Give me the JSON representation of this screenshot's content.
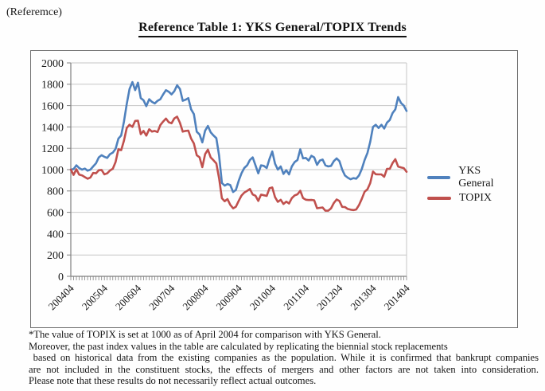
{
  "page": {
    "reference_label": "(Referemce)",
    "title": "Reference Table 1: YKS General/TOPIX Trends"
  },
  "chart_data": {
    "type": "line",
    "title": "Reference Table 1: YKS General/TOPIX Trends",
    "x_start": "200404",
    "x_end": "201404",
    "x_interval": "monthly",
    "x_tick_labels": [
      "200404",
      "200504",
      "200604",
      "200704",
      "200804",
      "200904",
      "201004",
      "201104",
      "201204",
      "201304",
      "201404"
    ],
    "ylim": [
      0,
      2000
    ],
    "y_ticks": [
      0,
      200,
      400,
      600,
      800,
      1000,
      1200,
      1400,
      1600,
      1800,
      2000
    ],
    "grid": "horizontal",
    "legend_position": "right",
    "axis_color": "#808080",
    "gridline_color": "#c6c6c6",
    "series": [
      {
        "name": "YKS General",
        "color": "#4F81BD",
        "values": [
          1000,
          1005,
          1040,
          1015,
          1000,
          1010,
          990,
          1000,
          1030,
          1060,
          1115,
          1135,
          1120,
          1110,
          1145,
          1160,
          1195,
          1290,
          1320,
          1450,
          1615,
          1755,
          1820,
          1745,
          1815,
          1670,
          1650,
          1595,
          1660,
          1635,
          1620,
          1645,
          1660,
          1705,
          1745,
          1730,
          1705,
          1735,
          1790,
          1755,
          1645,
          1655,
          1670,
          1565,
          1520,
          1355,
          1330,
          1255,
          1365,
          1410,
          1350,
          1320,
          1295,
          1130,
          875,
          850,
          865,
          855,
          790,
          810,
          895,
          965,
          1015,
          1040,
          1090,
          1115,
          1040,
          965,
          1040,
          1035,
          1015,
          1100,
          1170,
          1055,
          1000,
          1030,
          960,
          995,
          955,
          1030,
          1070,
          1090,
          1190,
          1105,
          1110,
          1085,
          1130,
          1115,
          1045,
          1085,
          1095,
          1040,
          1030,
          1035,
          1080,
          1105,
          1080,
          1000,
          945,
          925,
          910,
          920,
          915,
          945,
          1005,
          1090,
          1155,
          1260,
          1400,
          1420,
          1390,
          1420,
          1385,
          1440,
          1465,
          1530,
          1565,
          1680,
          1625,
          1600,
          1550
        ]
      },
      {
        "name": "TOPIX",
        "color": "#C0504D",
        "values": [
          1000,
          951,
          1004,
          953,
          946,
          930,
          915,
          926,
          969,
          966,
          995,
          997,
          956,
          965,
          992,
          1008,
          1072,
          1191,
          1182,
          1272,
          1390,
          1421,
          1400,
          1457,
          1458,
          1332,
          1363,
          1319,
          1378,
          1357,
          1363,
          1352,
          1417,
          1451,
          1478,
          1444,
          1434,
          1480,
          1496,
          1438,
          1356,
          1363,
          1366,
          1291,
          1245,
          1135,
          1116,
          1023,
          1145,
          1187,
          1114,
          1088,
          1058,
          917,
          731,
          704,
          724,
          670,
          637,
          652,
          707,
          757,
          784,
          801,
          819,
          767,
          755,
          707,
          766,
          760,
          754,
          825,
          833,
          742,
          698,
          717,
          678,
          700,
          683,
          733,
          758,
          769,
          802,
          733,
          718,
          715,
          716,
          713,
          638,
          642,
          645,
          615,
          615,
          637,
          687,
          720,
          706,
          651,
          649,
          631,
          625,
          621,
          626,
          667,
          725,
          793,
          815,
          873,
          982,
          957,
          955,
          955,
          933,
          1007,
          1007,
          1061,
          1098,
          1029,
          1021,
          1014,
          980
        ]
      }
    ]
  },
  "footnote": {
    "lines": [
      "*The value of TOPIX is set at 1000 as of April 2004 for comparison with YKS General.",
      "Moreover, the past index values in the table are calculated by replicating the biennial stock replacements",
      " based on historical data from the existing companies as the population. While it is confirmed that bankrupt companies",
      "are not included in the constituent stocks, the effects of mergers and other factors are not taken into consideration.",
      "Please note that these results do not necessarily reflect actual outcomes."
    ]
  }
}
